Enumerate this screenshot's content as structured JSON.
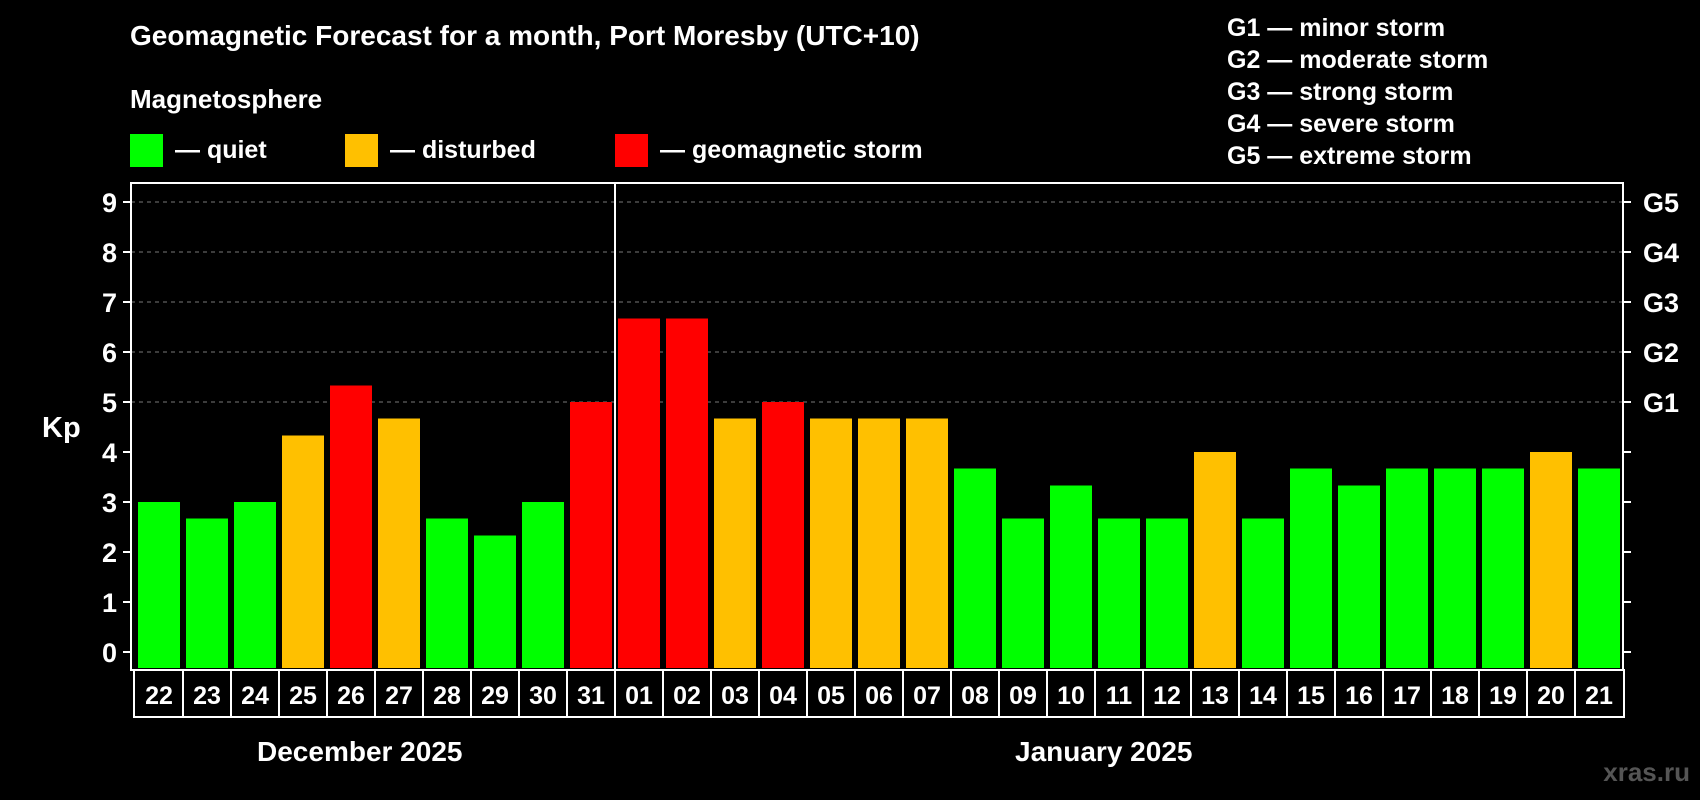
{
  "title": "Geomagnetic Forecast for a month, Port Moresby (UTC+10)",
  "magnetosphere_label": "Magnetosphere",
  "legend": [
    {
      "label": "— quiet",
      "color": "#00ff00"
    },
    {
      "label": "— disturbed",
      "color": "#ffc000"
    },
    {
      "label": "— geomagnetic storm",
      "color": "#ff0000"
    }
  ],
  "storm_legend": [
    "G1 — minor storm",
    "G2 — moderate storm",
    "G3 — strong storm",
    "G4 — severe storm",
    "G5 — extreme storm"
  ],
  "months": {
    "first": "December 2025",
    "second": "January 2025"
  },
  "watermark": "xras.ru",
  "chart_data": {
    "type": "bar",
    "ylabel": "Kp",
    "ylim": [
      0,
      9.3
    ],
    "yticks": [
      0,
      1,
      2,
      3,
      4,
      5,
      6,
      7,
      8,
      9
    ],
    "right_axis_labels": [
      {
        "kp": 5,
        "label": "G1"
      },
      {
        "kp": 6,
        "label": "G2"
      },
      {
        "kp": 7,
        "label": "G3"
      },
      {
        "kp": 8,
        "label": "G4"
      },
      {
        "kp": 9,
        "label": "G5"
      }
    ],
    "grid": true,
    "categories": [
      "22",
      "23",
      "24",
      "25",
      "26",
      "27",
      "28",
      "29",
      "30",
      "31",
      "01",
      "02",
      "03",
      "04",
      "05",
      "06",
      "07",
      "08",
      "09",
      "10",
      "11",
      "12",
      "13",
      "14",
      "15",
      "16",
      "17",
      "18",
      "19",
      "20",
      "21"
    ],
    "values": [
      3.0,
      2.67,
      3.0,
      4.33,
      5.33,
      4.67,
      2.67,
      2.33,
      3.0,
      5.0,
      6.67,
      6.67,
      4.67,
      5.0,
      4.67,
      4.67,
      4.67,
      3.67,
      2.67,
      3.33,
      2.67,
      2.67,
      4.0,
      2.67,
      3.67,
      3.33,
      3.67,
      3.67,
      3.67,
      4.0,
      3.67
    ],
    "levels": [
      "quiet",
      "quiet",
      "quiet",
      "disturbed",
      "storm",
      "disturbed",
      "quiet",
      "quiet",
      "quiet",
      "storm",
      "storm",
      "storm",
      "disturbed",
      "storm",
      "disturbed",
      "disturbed",
      "disturbed",
      "quiet",
      "quiet",
      "quiet",
      "quiet",
      "quiet",
      "disturbed",
      "quiet",
      "quiet",
      "quiet",
      "quiet",
      "quiet",
      "quiet",
      "disturbed",
      "quiet"
    ],
    "level_colors": {
      "quiet": "#00ff00",
      "disturbed": "#ffc000",
      "storm": "#ff0000"
    },
    "month_boundary_after_index": 9
  }
}
